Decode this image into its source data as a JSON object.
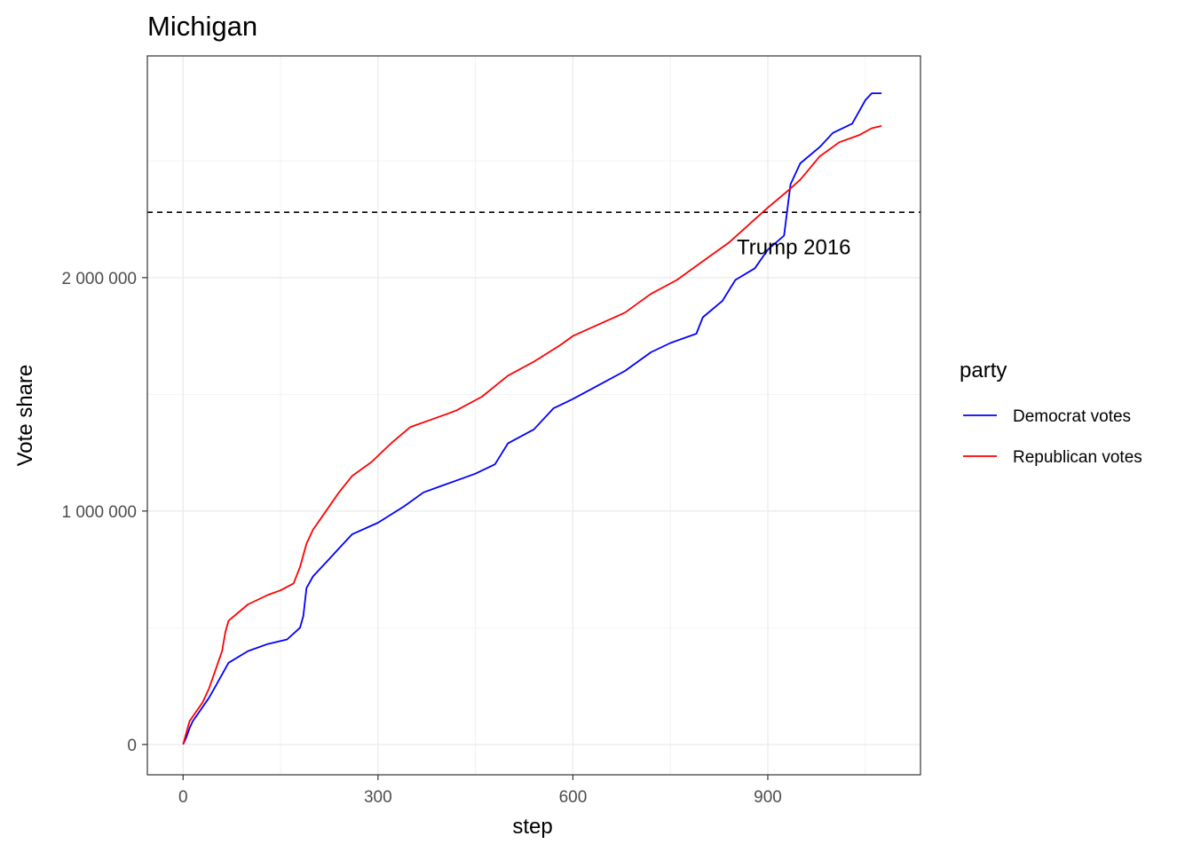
{
  "chart_data": {
    "type": "line",
    "title": "Michigan",
    "xlabel": "step",
    "ylabel": "Vote share",
    "xlim": [
      -55,
      1135
    ],
    "ylim": [
      -130000,
      2950000
    ],
    "x_ticks": [
      0,
      300,
      600,
      900
    ],
    "x_tick_labels": [
      "0",
      "300",
      "600",
      "900"
    ],
    "y_ticks": [
      0,
      1000000,
      2000000
    ],
    "y_tick_labels": [
      "0",
      "1 000 000",
      "2 000 000"
    ],
    "grid": true,
    "legend": {
      "title": "party",
      "position": "right",
      "entries": [
        {
          "label": "Democrat votes",
          "color": "#0000ff"
        },
        {
          "label": "Republican votes",
          "color": "#ff0000"
        }
      ]
    },
    "reference_line": {
      "y": 2280000,
      "style": "dashed",
      "color": "#000000"
    },
    "annotation": {
      "text": "Trump 2016",
      "x": 940,
      "y": 2130000
    },
    "series": [
      {
        "name": "Democrat votes",
        "color": "#0000ff",
        "x": [
          0,
          5,
          10,
          15,
          20,
          30,
          40,
          50,
          60,
          70,
          100,
          130,
          160,
          180,
          185,
          190,
          200,
          220,
          240,
          260,
          300,
          340,
          370,
          400,
          450,
          480,
          500,
          540,
          570,
          600,
          640,
          680,
          720,
          750,
          790,
          800,
          830,
          850,
          880,
          900,
          925,
          935,
          950,
          980,
          1000,
          1030,
          1050,
          1060,
          1075
        ],
        "y": [
          0,
          30000,
          70000,
          100000,
          120000,
          160000,
          200000,
          250000,
          300000,
          350000,
          400000,
          430000,
          450000,
          500000,
          550000,
          670000,
          720000,
          780000,
          840000,
          900000,
          950000,
          1020000,
          1080000,
          1110000,
          1160000,
          1200000,
          1290000,
          1350000,
          1440000,
          1480000,
          1540000,
          1600000,
          1680000,
          1720000,
          1760000,
          1830000,
          1900000,
          1990000,
          2040000,
          2120000,
          2180000,
          2400000,
          2490000,
          2560000,
          2620000,
          2660000,
          2760000,
          2790000,
          2790000
        ]
      },
      {
        "name": "Republican votes",
        "color": "#ff0000",
        "x": [
          0,
          5,
          10,
          20,
          30,
          40,
          50,
          60,
          65,
          70,
          100,
          130,
          150,
          170,
          180,
          190,
          200,
          220,
          240,
          260,
          290,
          320,
          350,
          380,
          420,
          460,
          500,
          540,
          580,
          600,
          640,
          680,
          720,
          760,
          800,
          840,
          880,
          900,
          930,
          950,
          980,
          1010,
          1040,
          1060,
          1075
        ],
        "y": [
          0,
          50000,
          100000,
          140000,
          180000,
          240000,
          320000,
          400000,
          480000,
          530000,
          600000,
          640000,
          660000,
          690000,
          760000,
          860000,
          920000,
          1000000,
          1080000,
          1150000,
          1210000,
          1290000,
          1360000,
          1390000,
          1430000,
          1490000,
          1580000,
          1640000,
          1710000,
          1750000,
          1800000,
          1850000,
          1930000,
          1990000,
          2070000,
          2150000,
          2250000,
          2300000,
          2370000,
          2420000,
          2520000,
          2580000,
          2610000,
          2640000,
          2650000
        ]
      }
    ]
  }
}
